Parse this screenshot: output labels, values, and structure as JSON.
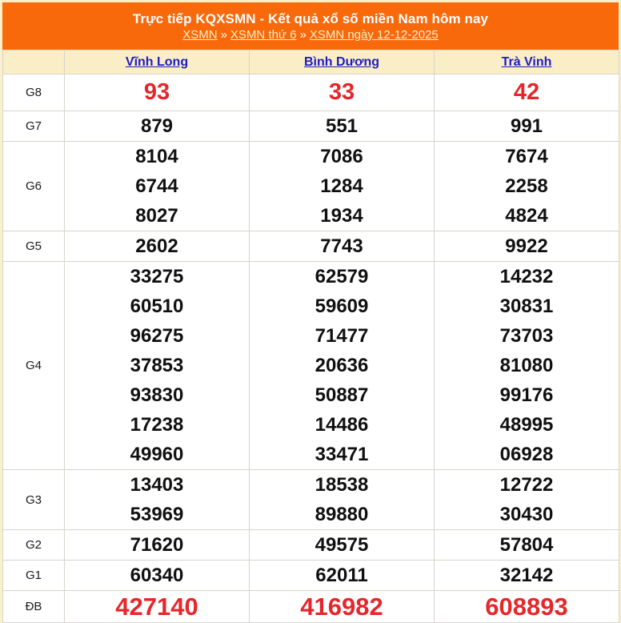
{
  "header": {
    "title": "Trực tiếp KQXSMN - Kết quả xổ số miền Nam hôm nay",
    "separator": "»",
    "breadcrumb": [
      "XSMN",
      "XSMN thứ 6",
      "XSMN ngày 12-12-2025"
    ]
  },
  "table": {
    "corner_label": "",
    "columns": [
      "Vĩnh Long",
      "Bình Dương",
      "Trà Vinh"
    ],
    "prizes": [
      {
        "label": "G8",
        "style": "red-large",
        "values": [
          [
            "93"
          ],
          [
            "33"
          ],
          [
            "42"
          ]
        ]
      },
      {
        "label": "G7",
        "style": "normal",
        "values": [
          [
            "879"
          ],
          [
            "551"
          ],
          [
            "991"
          ]
        ]
      },
      {
        "label": "G6",
        "style": "normal",
        "values": [
          [
            "8104",
            "6744",
            "8027"
          ],
          [
            "7086",
            "1284",
            "1934"
          ],
          [
            "7674",
            "2258",
            "4824"
          ]
        ]
      },
      {
        "label": "G5",
        "style": "normal",
        "values": [
          [
            "2602"
          ],
          [
            "7743"
          ],
          [
            "9922"
          ]
        ]
      },
      {
        "label": "G4",
        "style": "normal",
        "values": [
          [
            "33275",
            "60510",
            "96275",
            "37853",
            "93830",
            "17238",
            "49960"
          ],
          [
            "62579",
            "59609",
            "71477",
            "20636",
            "50887",
            "14486",
            "33471"
          ],
          [
            "14232",
            "30831",
            "73703",
            "81080",
            "99176",
            "48995",
            "06928"
          ]
        ]
      },
      {
        "label": "G3",
        "style": "normal",
        "values": [
          [
            "13403",
            "53969"
          ],
          [
            "18538",
            "89880"
          ],
          [
            "12722",
            "30430"
          ]
        ]
      },
      {
        "label": "G2",
        "style": "normal",
        "values": [
          [
            "71620"
          ],
          [
            "49575"
          ],
          [
            "57804"
          ]
        ]
      },
      {
        "label": "G1",
        "style": "normal",
        "values": [
          [
            "60340"
          ],
          [
            "62011"
          ],
          [
            "32142"
          ]
        ]
      },
      {
        "label": "ĐB",
        "style": "red-xlarge",
        "values": [
          [
            "427140"
          ],
          [
            "416982"
          ],
          [
            "608893"
          ]
        ]
      }
    ]
  },
  "colors": {
    "accent": "#f8690b",
    "page-bg": "#faf0ca",
    "head-bg": "#faeec6",
    "link": "#1c1cc4",
    "red": "#e6262b",
    "pale": "#ffeec2"
  }
}
